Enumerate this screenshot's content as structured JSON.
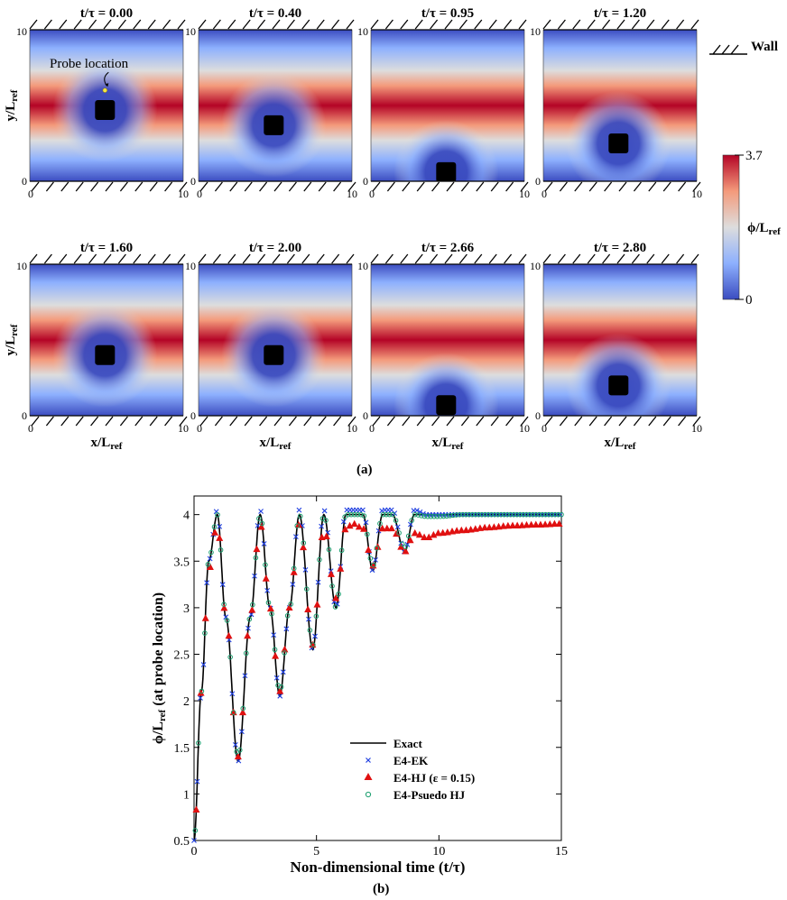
{
  "figure_a": {
    "panel_label": "(a)",
    "panels": [
      {
        "time_label": "t/τ = 0.00",
        "obstacle": {
          "x": 4.9,
          "y": 4.7
        },
        "probe": true
      },
      {
        "time_label": "t/τ = 0.40",
        "obstacle": {
          "x": 4.9,
          "y": 3.7
        },
        "probe": false
      },
      {
        "time_label": "t/τ = 0.95",
        "obstacle": {
          "x": 4.9,
          "y": 0.6
        },
        "probe": false
      },
      {
        "time_label": "t/τ = 1.20",
        "obstacle": {
          "x": 4.9,
          "y": 2.5
        },
        "probe": false
      },
      {
        "time_label": "t/τ = 1.60",
        "obstacle": {
          "x": 4.9,
          "y": 4.0
        },
        "probe": false
      },
      {
        "time_label": "t/τ = 2.00",
        "obstacle": {
          "x": 4.9,
          "y": 4.0
        },
        "probe": false
      },
      {
        "time_label": "t/τ = 2.66",
        "obstacle": {
          "x": 4.9,
          "y": 0.7
        },
        "probe": false
      },
      {
        "time_label": "t/τ = 2.80",
        "obstacle": {
          "x": 4.9,
          "y": 2.0
        },
        "probe": false
      }
    ],
    "axis_ticks": {
      "x_min": "0",
      "x_max": "10",
      "y_min": "0",
      "y_max": "10"
    },
    "ylabel": "y/L",
    "ylabel_sub": "ref",
    "xlabel": "x/L",
    "xlabel_sub": "ref",
    "probe_label": "Probe location",
    "wall_label": "Wall",
    "colorbar": {
      "max_label": "3.7",
      "min_label": "0",
      "title": "ϕ/L",
      "title_sub": "ref",
      "colors": [
        "#3b4cc0",
        "#8db0fe",
        "#dddddd",
        "#f49a7b",
        "#b40426"
      ]
    }
  },
  "chart_data": {
    "type": "line",
    "panel_label": "(b)",
    "xlabel": "Non-dimensional time (t/τ)",
    "ylabel": "ϕ/L",
    "ylabel_sub": "ref",
    "ylabel_tail": " (at probe location)",
    "xlim": [
      0,
      15
    ],
    "ylim": [
      0.5,
      4.2
    ],
    "xticks": [
      0,
      5,
      10,
      15
    ],
    "yticks": [
      0.5,
      1,
      1.5,
      2,
      2.5,
      3,
      3.5,
      4
    ],
    "legend_position": "center-right",
    "series": [
      {
        "name": "Exact",
        "marker": "line",
        "color": "#000000",
        "x": [
          0,
          0.3,
          0.6,
          0.95,
          1.3,
          1.8,
          2.3,
          2.7,
          3.1,
          3.5,
          3.9,
          4.3,
          4.85,
          5.3,
          5.8,
          6.2,
          6.5,
          6.9,
          7.3,
          7.7,
          8.1,
          8.6,
          9.0,
          9.5,
          10,
          11,
          12,
          13,
          14,
          15
        ],
        "y": [
          0.5,
          2.1,
          3.5,
          4.0,
          2.9,
          1.35,
          2.9,
          4.0,
          3.0,
          2.05,
          3.0,
          4.0,
          2.55,
          4.0,
          3.0,
          4.0,
          4.0,
          4.0,
          3.4,
          4.0,
          4.0,
          3.6,
          4.0,
          4.0,
          4.0,
          4.0,
          4.0,
          4.0,
          4.0,
          4.0
        ]
      },
      {
        "name": "E4-EK",
        "marker": "x",
        "color": "#1f3fe0",
        "x": [
          0,
          0.3,
          0.6,
          0.95,
          1.3,
          1.8,
          2.3,
          2.7,
          3.1,
          3.5,
          3.9,
          4.3,
          4.85,
          5.3,
          5.8,
          6.2,
          6.5,
          6.9,
          7.3,
          7.7,
          8.1,
          8.6,
          9.0,
          9.5,
          10,
          11,
          12,
          13,
          14,
          15
        ],
        "y": [
          0.5,
          2.1,
          3.5,
          4.05,
          2.9,
          1.35,
          2.9,
          4.05,
          3.0,
          2.05,
          3.0,
          4.05,
          2.55,
          4.05,
          3.0,
          4.05,
          4.05,
          4.05,
          3.4,
          4.05,
          4.05,
          3.6,
          4.05,
          4.0,
          4.0,
          4.0,
          4.0,
          4.0,
          4.0,
          4.0
        ]
      },
      {
        "name": "E4-HJ (ε = 0.15)",
        "marker": "triangle",
        "color": "#e01010",
        "x": [
          0,
          0.3,
          0.6,
          0.95,
          1.3,
          1.8,
          2.3,
          2.7,
          3.1,
          3.5,
          3.9,
          4.3,
          4.85,
          5.3,
          5.8,
          6.2,
          6.5,
          6.9,
          7.3,
          7.7,
          8.1,
          8.6,
          9.0,
          9.5,
          10,
          11,
          12,
          13,
          14,
          15
        ],
        "y": [
          0.5,
          2.1,
          3.4,
          3.9,
          2.9,
          1.4,
          2.9,
          3.9,
          3.0,
          2.1,
          3.0,
          3.9,
          2.6,
          3.85,
          3.1,
          3.85,
          3.9,
          3.85,
          3.45,
          3.85,
          3.85,
          3.6,
          3.8,
          3.75,
          3.8,
          3.83,
          3.86,
          3.88,
          3.89,
          3.9
        ]
      },
      {
        "name": "E4-Psuedo HJ",
        "marker": "circle",
        "color": "#1a9e6e",
        "x": [
          0,
          0.3,
          0.6,
          0.95,
          1.3,
          1.8,
          2.3,
          2.7,
          3.1,
          3.5,
          3.9,
          4.3,
          4.85,
          5.3,
          5.8,
          6.2,
          6.5,
          6.9,
          7.3,
          7.7,
          8.1,
          8.6,
          9.0,
          9.5,
          10,
          11,
          12,
          13,
          14,
          15
        ],
        "y": [
          0.5,
          2.1,
          3.5,
          4.0,
          2.9,
          1.4,
          2.9,
          4.0,
          3.0,
          2.1,
          3.0,
          4.0,
          2.6,
          4.0,
          3.0,
          4.0,
          4.0,
          4.0,
          3.45,
          4.0,
          4.0,
          3.65,
          4.0,
          3.98,
          3.98,
          4.0,
          4.0,
          4.0,
          4.0,
          4.0
        ]
      }
    ]
  }
}
